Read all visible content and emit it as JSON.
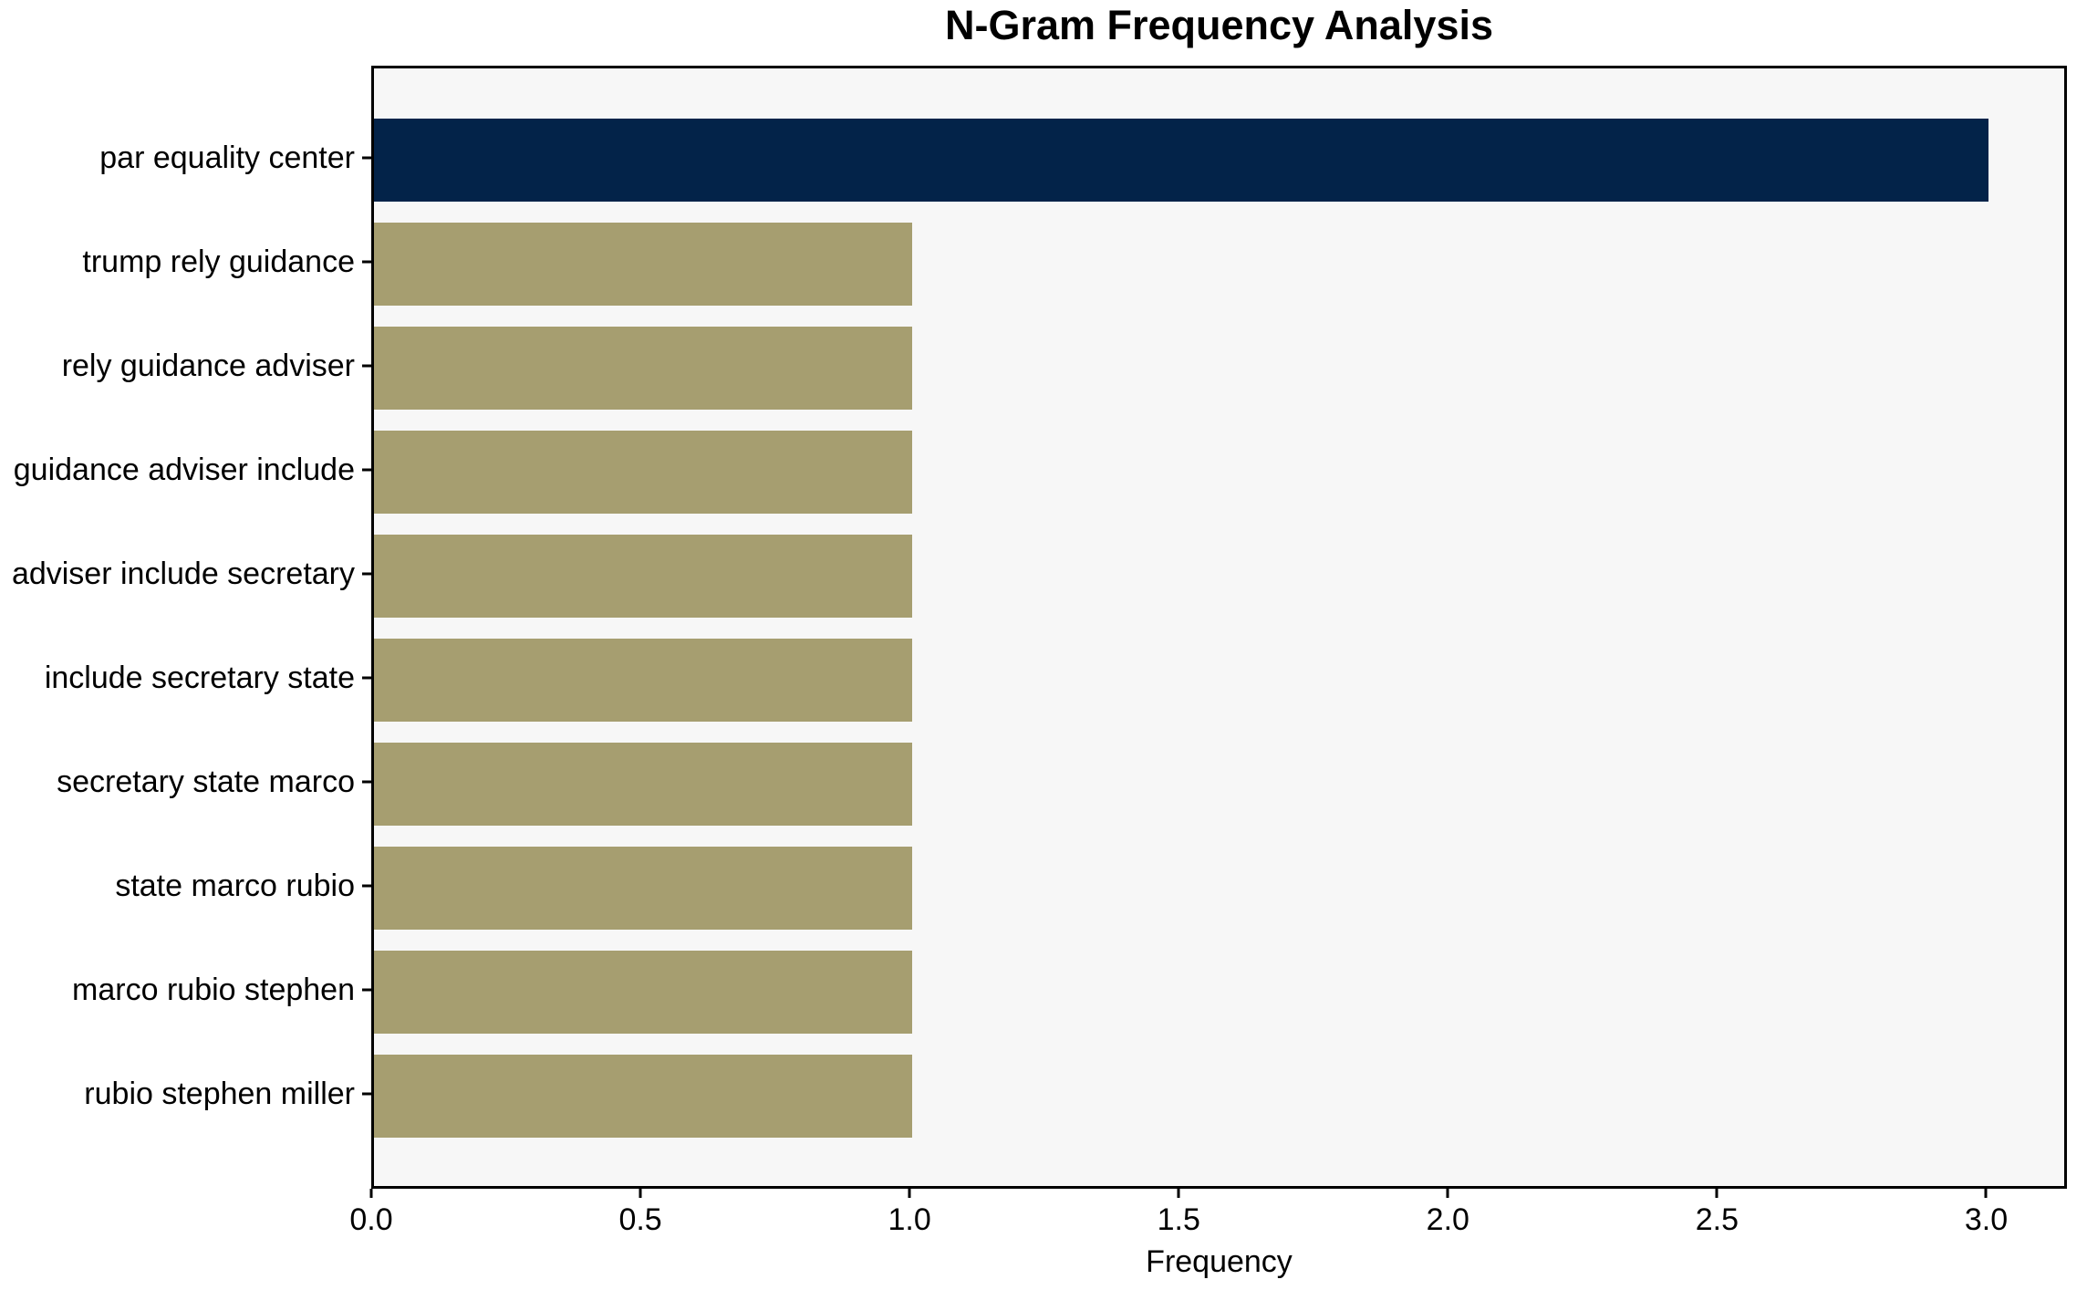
{
  "chart_data": {
    "type": "bar",
    "orientation": "horizontal",
    "title": "N-Gram Frequency Analysis",
    "xlabel": "Frequency",
    "ylabel": "",
    "categories": [
      "par equality center",
      "trump rely guidance",
      "rely guidance adviser",
      "guidance adviser include",
      "adviser include secretary",
      "include secretary state",
      "secretary state marco",
      "state marco rubio",
      "marco rubio stephen",
      "rubio stephen miller"
    ],
    "values": [
      3,
      1,
      1,
      1,
      1,
      1,
      1,
      1,
      1,
      1
    ],
    "bar_colors": [
      "#032349",
      "#a69e70",
      "#a69e70",
      "#a69e70",
      "#a69e70",
      "#a69e70",
      "#a69e70",
      "#a69e70",
      "#a69e70",
      "#a69e70"
    ],
    "xlim": [
      0,
      3.15
    ],
    "xticks": [
      0,
      0.5,
      1.0,
      1.5,
      2.0,
      2.5,
      3.0
    ],
    "xtick_labels": [
      "0.0",
      "0.5",
      "1.0",
      "1.5",
      "2.0",
      "2.5",
      "3.0"
    ],
    "grid": false,
    "legend": "none",
    "colors": {
      "plot_background": "#f7f7f7",
      "figure_background": "#ffffff",
      "spine": "#000000",
      "text": "#000000",
      "highlight_bar": "#032349",
      "default_bar": "#a69e70"
    }
  }
}
